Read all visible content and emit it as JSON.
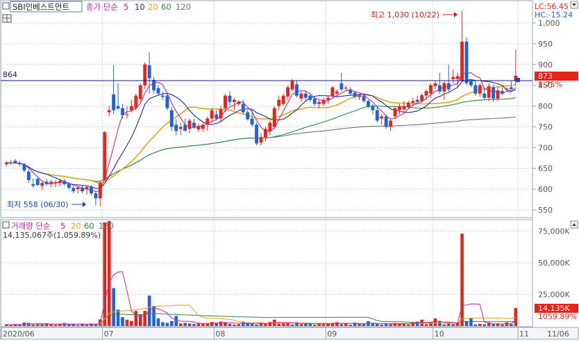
{
  "header": {
    "stock_name": "SBI인베스트먼트",
    "ma_label": "종가 단순",
    "ma_periods": [
      "5",
      "10",
      "20",
      "60",
      "120"
    ],
    "lc": "LC:56.45",
    "hc": "HC:-15.24"
  },
  "volume_header": {
    "title": "거래량 단순",
    "ma_periods": [
      "5",
      "20",
      "60",
      "120"
    ],
    "value": "14,135,067주(1,059.89%)"
  },
  "annotations": {
    "high": "최고 1,030 (10/22)",
    "low": "최저 558 (06/30)",
    "ref_line": "864",
    "price_badge": "873",
    "pct_badge": "1.75%",
    "vol_badge": "14,135K",
    "vol_pct": "1059.89%"
  },
  "colors": {
    "up": "#e8241a",
    "down": "#1f63d6",
    "ma5": "#cc22aa",
    "ma10": "#1a2a99",
    "ma20": "#e8a317",
    "ma60": "#2e8b3e",
    "ma120": "#707070",
    "ref_line": "#1a1a7a",
    "grid": "#9bb0c6",
    "axis_text": "#555555"
  },
  "chart_data": [
    {
      "type": "candlestick",
      "title": "SBI인베스트먼트",
      "y_ticks": [
        "550",
        "600",
        "650",
        "700",
        "750",
        "800",
        "850",
        "900",
        "950",
        "1,000"
      ],
      "ylim": [
        530,
        1030
      ],
      "x_ticks": [
        "2020/06",
        "07",
        "08",
        "09",
        "10",
        "11",
        "11/06"
      ],
      "reference_line": 864,
      "last_price": 873,
      "change_pct": "1.75%",
      "high": {
        "value": 1030,
        "date": "10/22"
      },
      "low": {
        "value": 558,
        "date": "06/30"
      },
      "candles": [
        {
          "o": 660,
          "h": 668,
          "l": 655,
          "c": 664
        },
        {
          "o": 664,
          "h": 670,
          "l": 658,
          "c": 662
        },
        {
          "o": 668,
          "h": 672,
          "l": 660,
          "c": 664
        },
        {
          "o": 662,
          "h": 668,
          "l": 655,
          "c": 660
        },
        {
          "o": 660,
          "h": 664,
          "l": 640,
          "c": 645
        },
        {
          "o": 642,
          "h": 648,
          "l": 615,
          "c": 622
        },
        {
          "o": 612,
          "h": 625,
          "l": 603,
          "c": 608
        },
        {
          "o": 625,
          "h": 628,
          "l": 608,
          "c": 610
        },
        {
          "o": 608,
          "h": 618,
          "l": 598,
          "c": 615
        },
        {
          "o": 618,
          "h": 625,
          "l": 608,
          "c": 612
        },
        {
          "o": 614,
          "h": 622,
          "l": 605,
          "c": 618
        },
        {
          "o": 615,
          "h": 622,
          "l": 605,
          "c": 617
        },
        {
          "o": 615,
          "h": 625,
          "l": 607,
          "c": 620
        },
        {
          "o": 620,
          "h": 625,
          "l": 608,
          "c": 612
        },
        {
          "o": 613,
          "h": 617,
          "l": 600,
          "c": 603
        },
        {
          "o": 603,
          "h": 607,
          "l": 590,
          "c": 595
        },
        {
          "o": 600,
          "h": 608,
          "l": 590,
          "c": 604
        },
        {
          "o": 604,
          "h": 610,
          "l": 590,
          "c": 595
        },
        {
          "o": 600,
          "h": 608,
          "l": 587,
          "c": 605
        },
        {
          "o": 605,
          "h": 610,
          "l": 585,
          "c": 590
        },
        {
          "o": 590,
          "h": 596,
          "l": 560,
          "c": 578
        },
        {
          "o": 578,
          "h": 620,
          "l": 558,
          "c": 615
        },
        {
          "o": 622,
          "h": 740,
          "l": 620,
          "c": 737
        },
        {
          "o": 785,
          "h": 800,
          "l": 775,
          "c": 790
        },
        {
          "o": 828,
          "h": 898,
          "l": 780,
          "c": 790
        },
        {
          "o": 800,
          "h": 855,
          "l": 790,
          "c": 794
        },
        {
          "o": 795,
          "h": 805,
          "l": 770,
          "c": 778
        },
        {
          "o": 778,
          "h": 800,
          "l": 770,
          "c": 780
        },
        {
          "o": 790,
          "h": 815,
          "l": 785,
          "c": 800
        },
        {
          "o": 795,
          "h": 830,
          "l": 790,
          "c": 825
        },
        {
          "o": 817,
          "h": 855,
          "l": 810,
          "c": 850
        },
        {
          "o": 850,
          "h": 905,
          "l": 840,
          "c": 900
        },
        {
          "o": 898,
          "h": 930,
          "l": 830,
          "c": 867
        },
        {
          "o": 863,
          "h": 870,
          "l": 830,
          "c": 838
        },
        {
          "o": 843,
          "h": 850,
          "l": 825,
          "c": 830
        },
        {
          "o": 825,
          "h": 835,
          "l": 815,
          "c": 822
        },
        {
          "o": 825,
          "h": 832,
          "l": 790,
          "c": 795
        },
        {
          "o": 790,
          "h": 798,
          "l": 740,
          "c": 750
        },
        {
          "o": 755,
          "h": 768,
          "l": 730,
          "c": 740
        },
        {
          "o": 745,
          "h": 760,
          "l": 730,
          "c": 750
        },
        {
          "o": 755,
          "h": 770,
          "l": 740,
          "c": 740
        },
        {
          "o": 745,
          "h": 770,
          "l": 735,
          "c": 765
        },
        {
          "o": 760,
          "h": 770,
          "l": 745,
          "c": 748
        },
        {
          "o": 744,
          "h": 758,
          "l": 738,
          "c": 752
        },
        {
          "o": 745,
          "h": 760,
          "l": 738,
          "c": 755
        },
        {
          "o": 755,
          "h": 775,
          "l": 740,
          "c": 770
        },
        {
          "o": 770,
          "h": 795,
          "l": 760,
          "c": 790
        },
        {
          "o": 780,
          "h": 790,
          "l": 765,
          "c": 770
        },
        {
          "o": 770,
          "h": 800,
          "l": 760,
          "c": 792
        },
        {
          "o": 795,
          "h": 830,
          "l": 785,
          "c": 825
        },
        {
          "o": 825,
          "h": 835,
          "l": 800,
          "c": 810
        },
        {
          "o": 810,
          "h": 820,
          "l": 790,
          "c": 815
        },
        {
          "o": 805,
          "h": 815,
          "l": 800,
          "c": 810
        },
        {
          "o": 805,
          "h": 815,
          "l": 780,
          "c": 785
        },
        {
          "o": 785,
          "h": 790,
          "l": 765,
          "c": 768
        },
        {
          "o": 770,
          "h": 790,
          "l": 750,
          "c": 755
        },
        {
          "o": 755,
          "h": 760,
          "l": 705,
          "c": 710
        },
        {
          "o": 712,
          "h": 735,
          "l": 705,
          "c": 725
        },
        {
          "o": 725,
          "h": 750,
          "l": 715,
          "c": 745
        },
        {
          "o": 740,
          "h": 765,
          "l": 730,
          "c": 760
        },
        {
          "o": 750,
          "h": 800,
          "l": 745,
          "c": 795
        },
        {
          "o": 800,
          "h": 825,
          "l": 790,
          "c": 815
        },
        {
          "o": 805,
          "h": 830,
          "l": 800,
          "c": 825
        },
        {
          "o": 823,
          "h": 850,
          "l": 815,
          "c": 845
        },
        {
          "o": 840,
          "h": 865,
          "l": 835,
          "c": 860
        },
        {
          "o": 852,
          "h": 862,
          "l": 820,
          "c": 825
        },
        {
          "o": 818,
          "h": 835,
          "l": 810,
          "c": 830
        },
        {
          "o": 830,
          "h": 838,
          "l": 812,
          "c": 820
        },
        {
          "o": 825,
          "h": 830,
          "l": 810,
          "c": 815
        },
        {
          "o": 818,
          "h": 822,
          "l": 800,
          "c": 805
        },
        {
          "o": 805,
          "h": 815,
          "l": 795,
          "c": 810
        },
        {
          "o": 805,
          "h": 820,
          "l": 800,
          "c": 815
        },
        {
          "o": 815,
          "h": 825,
          "l": 805,
          "c": 820
        },
        {
          "o": 825,
          "h": 848,
          "l": 818,
          "c": 845
        },
        {
          "o": 830,
          "h": 840,
          "l": 825,
          "c": 835
        },
        {
          "o": 855,
          "h": 880,
          "l": 835,
          "c": 840
        },
        {
          "o": 842,
          "h": 848,
          "l": 836,
          "c": 844
        },
        {
          "o": 840,
          "h": 846,
          "l": 826,
          "c": 830
        },
        {
          "o": 832,
          "h": 838,
          "l": 817,
          "c": 822
        },
        {
          "o": 822,
          "h": 830,
          "l": 815,
          "c": 826
        },
        {
          "o": 824,
          "h": 828,
          "l": 808,
          "c": 812
        },
        {
          "o": 812,
          "h": 815,
          "l": 795,
          "c": 798
        },
        {
          "o": 800,
          "h": 805,
          "l": 780,
          "c": 790
        },
        {
          "o": 790,
          "h": 800,
          "l": 760,
          "c": 765
        },
        {
          "o": 770,
          "h": 780,
          "l": 755,
          "c": 775
        },
        {
          "o": 775,
          "h": 780,
          "l": 745,
          "c": 750
        },
        {
          "o": 750,
          "h": 770,
          "l": 740,
          "c": 765
        },
        {
          "o": 775,
          "h": 800,
          "l": 770,
          "c": 795
        },
        {
          "o": 790,
          "h": 805,
          "l": 780,
          "c": 800
        },
        {
          "o": 792,
          "h": 812,
          "l": 785,
          "c": 800
        },
        {
          "o": 798,
          "h": 812,
          "l": 792,
          "c": 808
        },
        {
          "o": 808,
          "h": 820,
          "l": 800,
          "c": 812
        },
        {
          "o": 815,
          "h": 825,
          "l": 806,
          "c": 810
        },
        {
          "o": 812,
          "h": 830,
          "l": 808,
          "c": 826
        },
        {
          "o": 825,
          "h": 840,
          "l": 815,
          "c": 836
        },
        {
          "o": 830,
          "h": 855,
          "l": 820,
          "c": 850
        },
        {
          "o": 848,
          "h": 862,
          "l": 840,
          "c": 855
        },
        {
          "o": 850,
          "h": 880,
          "l": 830,
          "c": 835
        },
        {
          "o": 835,
          "h": 860,
          "l": 815,
          "c": 855
        },
        {
          "o": 855,
          "h": 900,
          "l": 835,
          "c": 840
        },
        {
          "o": 865,
          "h": 888,
          "l": 855,
          "c": 870
        },
        {
          "o": 865,
          "h": 880,
          "l": 845,
          "c": 872
        },
        {
          "o": 862,
          "h": 1030,
          "l": 860,
          "c": 955
        },
        {
          "o": 955,
          "h": 965,
          "l": 850,
          "c": 855
        },
        {
          "o": 860,
          "h": 865,
          "l": 845,
          "c": 850
        },
        {
          "o": 850,
          "h": 860,
          "l": 825,
          "c": 830
        },
        {
          "o": 830,
          "h": 855,
          "l": 822,
          "c": 850
        },
        {
          "o": 830,
          "h": 845,
          "l": 815,
          "c": 820
        },
        {
          "o": 820,
          "h": 855,
          "l": 812,
          "c": 848
        },
        {
          "o": 845,
          "h": 852,
          "l": 810,
          "c": 818
        },
        {
          "o": 818,
          "h": 845,
          "l": 812,
          "c": 838
        },
        {
          "o": 836,
          "h": 844,
          "l": 826,
          "c": 830
        },
        {
          "o": 840,
          "h": 845,
          "l": 836,
          "c": 842
        },
        {
          "o": 845,
          "h": 860,
          "l": 840,
          "c": 840
        },
        {
          "o": 860,
          "h": 935,
          "l": 850,
          "c": 873
        }
      ]
    },
    {
      "type": "bar",
      "title": "거래량",
      "y_ticks": [
        "25,000K",
        "50,000K",
        "75,000K"
      ],
      "ylim": [
        0,
        83000
      ],
      "values_k": [
        1200,
        900,
        1500,
        800,
        2800,
        2500,
        1000,
        1800,
        1200,
        2200,
        1500,
        900,
        1600,
        2400,
        1100,
        1300,
        700,
        1800,
        1000,
        2000,
        1400,
        5200,
        82000,
        83000,
        30000,
        13000,
        7000,
        5000,
        4000,
        12000,
        9000,
        12000,
        24000,
        16000,
        6000,
        3000,
        2500,
        4000,
        8000,
        2000,
        2500,
        2000,
        1500,
        2500,
        1800,
        2000,
        3200,
        2500,
        3500,
        2600,
        1800,
        1200,
        1500,
        3500,
        2500,
        1800,
        1300,
        2400,
        1600,
        3200,
        5000,
        1800,
        2200,
        2500,
        1200,
        3000,
        1500,
        1800,
        2000,
        1000,
        2500,
        1400,
        1800,
        2600,
        3000,
        1500,
        2200,
        1000,
        2800,
        1600,
        1500,
        3800,
        2000,
        1700,
        1200,
        1800,
        1300,
        2500,
        2100,
        1800,
        1200,
        2800,
        3500,
        5000,
        1400,
        2800,
        6000,
        4000,
        1200,
        2000,
        1500,
        2500,
        73000,
        4000,
        6000,
        1300,
        1800,
        1400,
        2200,
        1500,
        2000,
        1200,
        2800,
        1500,
        14135
      ],
      "value_label": "14,135,067주(1,059.89%)"
    }
  ]
}
